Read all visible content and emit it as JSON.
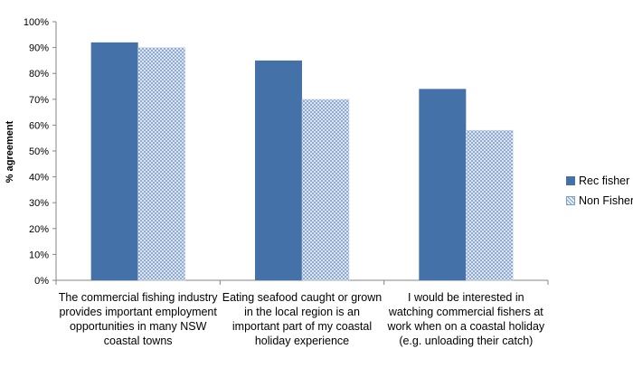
{
  "chart_data": {
    "type": "bar",
    "categories": [
      "The commercial fishing industry provides important employment opportunities in many NSW coastal towns",
      "Eating seafood caught or grown in the local region is an important part of my coastal holiday experience",
      "I would be interested in watching commercial fishers at work when on a coastal holiday (e.g. unloading their catch)"
    ],
    "series": [
      {
        "name": "Rec fisher",
        "values": [
          92,
          85,
          74
        ],
        "color": "#4472a8",
        "pattern": "solid"
      },
      {
        "name": "Non Fisher",
        "values": [
          90,
          70,
          58
        ],
        "color": "#7f9fc8",
        "pattern": "crosshatch"
      }
    ],
    "ylabel": "% agreement",
    "xlabel": "",
    "ylim": [
      0,
      100
    ],
    "yticks": [
      "0%",
      "10%",
      "20%",
      "30%",
      "40%",
      "50%",
      "60%",
      "70%",
      "80%",
      "90%",
      "100%"
    ],
    "grid": false,
    "legend_position": "right"
  }
}
